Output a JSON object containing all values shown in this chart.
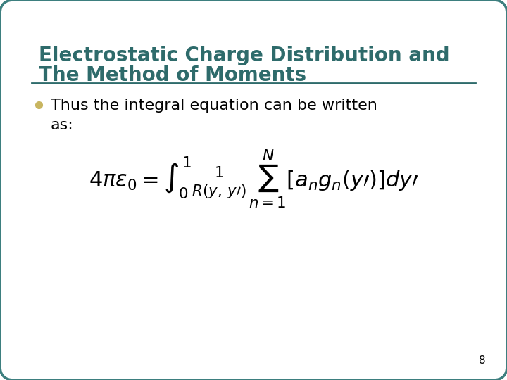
{
  "title_line1": "Electrostatic Charge Distribution and",
  "title_line2": "The Method of Moments",
  "title_color": "#2E6B6B",
  "bullet_text_line1": "Thus the integral equation can be written",
  "bullet_text_line2": "as:",
  "bullet_color": "#C8B560",
  "page_number": "8",
  "bg_color": "#FFFFFF",
  "border_color": "#3D7F7F",
  "separator_color": "#2E6B6B",
  "text_color": "#000000",
  "title_fontsize": 20,
  "body_fontsize": 16,
  "eq_fontsize": 22
}
